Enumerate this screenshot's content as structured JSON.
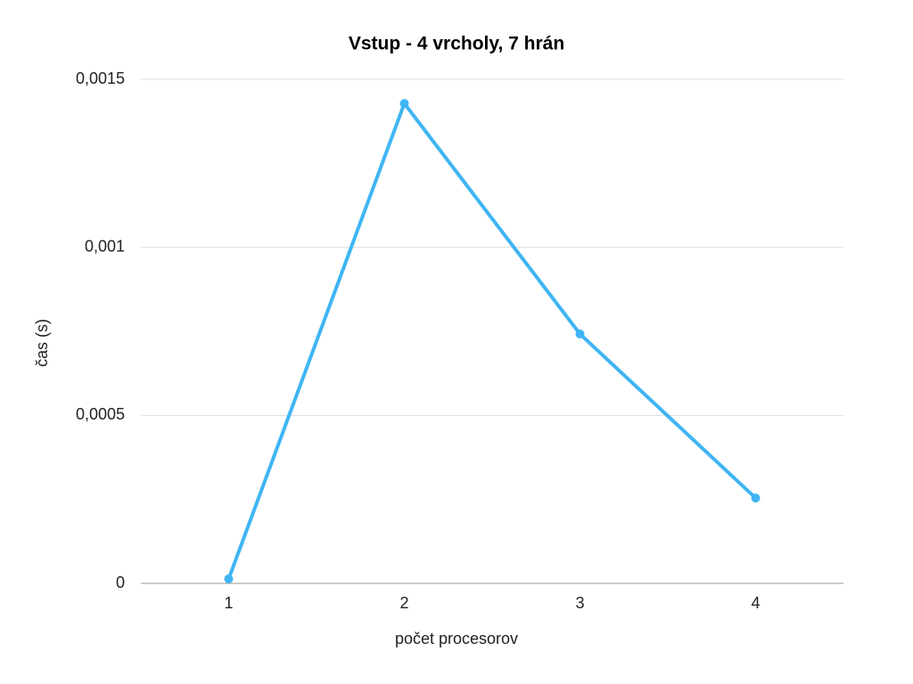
{
  "chart_data": {
    "type": "line",
    "title": "Vstup - 4 vrcholy, 7 hrán",
    "x_label": "počet procesorov",
    "y_label": "čas (s)",
    "categories": [
      "1",
      "2",
      "3",
      "4"
    ],
    "series": [
      {
        "name": "čas",
        "color": "#3fb5f3",
        "values": [
          1.33e-05,
          0.001428,
          0.000742,
          0.000254
        ]
      }
    ],
    "ylim": [
      0,
      0.0015
    ],
    "yticks": [
      0,
      {
        "value": 0.0005,
        "label": "0,0005"
      },
      {
        "value": 0.001,
        "label": "0,001"
      },
      {
        "value": 0.0015,
        "label": "0,0015"
      }
    ],
    "grid": true
  }
}
